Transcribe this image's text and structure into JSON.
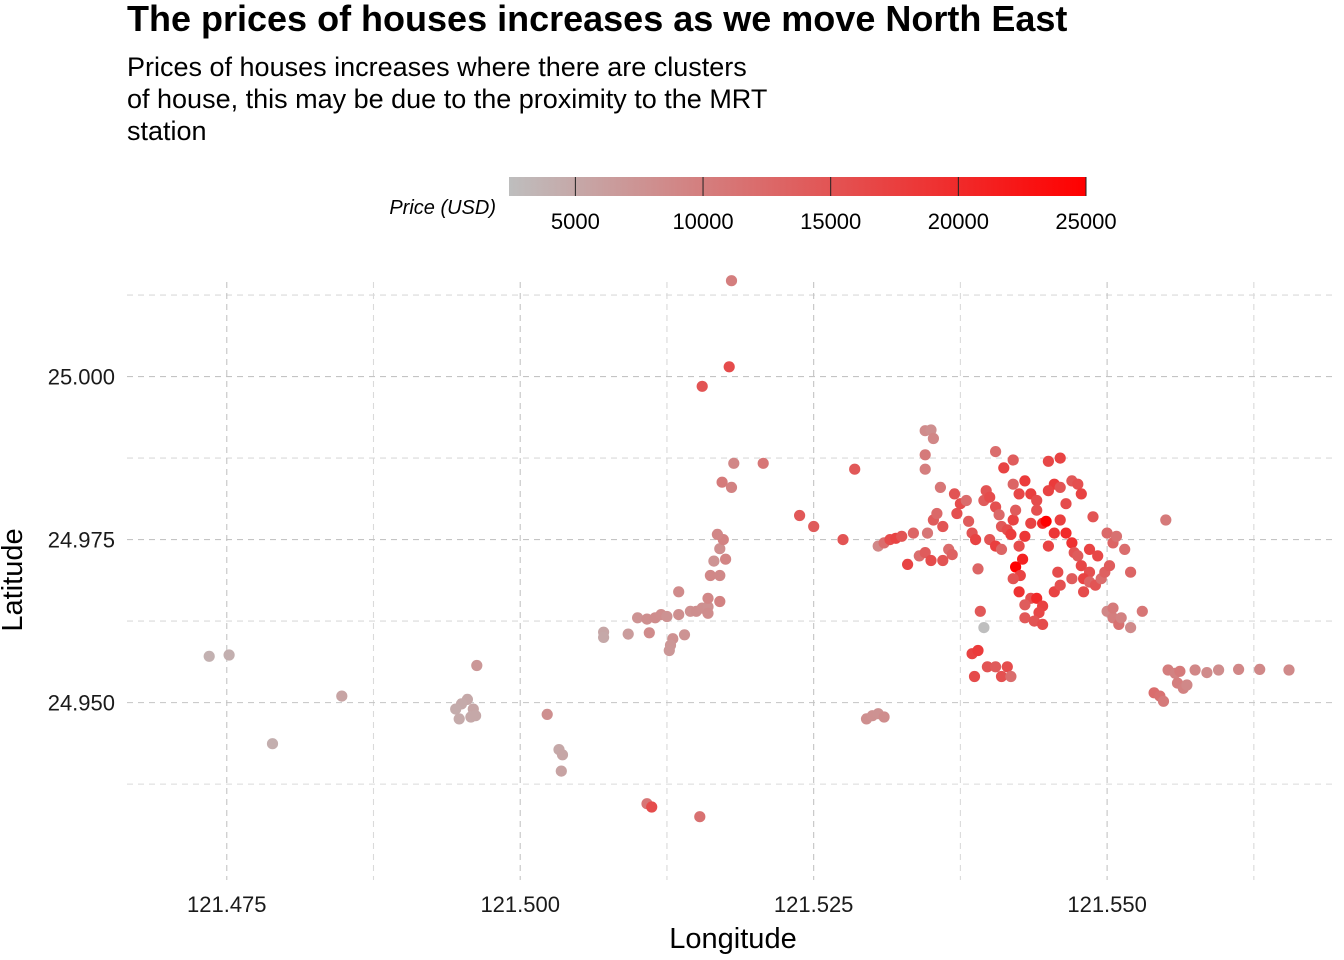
{
  "chart_data": {
    "type": "scatter",
    "title": "The prices of houses increases as we move North East",
    "subtitle_lines": [
      "Prices of houses increases where there are clusters",
      "of house, this may be due to the proximity to the MRT",
      "station"
    ],
    "xlabel": "Longitude",
    "ylabel": "Latitude",
    "xlim": [
      121.4665,
      121.5695
    ],
    "ylim": [
      24.9228,
      25.0145
    ],
    "x_ticks": [
      121.475,
      121.5,
      121.525,
      121.55
    ],
    "x_tick_labels": [
      "121.475",
      "121.500",
      "121.525",
      "121.550"
    ],
    "x_minor": [
      121.4875,
      121.5125,
      121.5375,
      121.5625
    ],
    "y_ticks": [
      24.95,
      24.975,
      25.0
    ],
    "y_tick_labels": [
      "24.950",
      "24.975",
      "25.000"
    ],
    "y_minor": [
      24.9375,
      24.9625,
      24.9875,
      25.0125
    ],
    "grid": true,
    "legend": {
      "title": "Price (USD)",
      "position": "top",
      "min": 2400,
      "max": 25000,
      "low_color": "#bebebe",
      "high_color": "#ff0000",
      "ticks": [
        5000,
        10000,
        15000,
        20000,
        25000
      ],
      "tick_labels": [
        "5000",
        "10000",
        "15000",
        "20000",
        "25000"
      ]
    },
    "points": [
      [
        121.4735,
        24.9571,
        4000
      ],
      [
        121.4752,
        24.9573,
        4200
      ],
      [
        121.4789,
        24.9437,
        4300
      ],
      [
        121.4848,
        24.951,
        5500
      ],
      [
        121.4963,
        24.9557,
        7000
      ],
      [
        121.4955,
        24.9505,
        5000
      ],
      [
        121.495,
        24.9498,
        4800
      ],
      [
        121.4945,
        24.949,
        4600
      ],
      [
        121.496,
        24.949,
        5200
      ],
      [
        121.4958,
        24.9478,
        4900
      ],
      [
        121.4948,
        24.9475,
        4700
      ],
      [
        121.4962,
        24.948,
        5000
      ],
      [
        121.5023,
        24.9482,
        8000
      ],
      [
        121.5033,
        24.9428,
        5000
      ],
      [
        121.5036,
        24.942,
        5200
      ],
      [
        121.5035,
        24.9395,
        5600
      ],
      [
        121.5071,
        24.9608,
        5200
      ],
      [
        121.5071,
        24.96,
        5000
      ],
      [
        121.5092,
        24.9605,
        6500
      ],
      [
        121.51,
        24.963,
        7500
      ],
      [
        121.5108,
        24.9628,
        8000
      ],
      [
        121.511,
        24.9607,
        8500
      ],
      [
        121.5115,
        24.963,
        8300
      ],
      [
        121.512,
        24.9635,
        8200
      ],
      [
        121.5125,
        24.9632,
        7600
      ],
      [
        121.5135,
        24.9635,
        8000
      ],
      [
        121.513,
        24.9598,
        7800
      ],
      [
        121.5128,
        24.9588,
        7200
      ],
      [
        121.5127,
        24.958,
        7000
      ],
      [
        121.5145,
        24.964,
        7800
      ],
      [
        121.514,
        24.9604,
        7500
      ],
      [
        121.5135,
        24.967,
        8500
      ],
      [
        121.515,
        24.964,
        8100
      ],
      [
        121.5155,
        24.9645,
        8000
      ],
      [
        121.516,
        24.9647,
        7700
      ],
      [
        121.516,
        24.9637,
        8200
      ],
      [
        121.5162,
        24.9695,
        9000
      ],
      [
        121.517,
        24.9695,
        8800
      ],
      [
        121.5165,
        24.9717,
        7500
      ],
      [
        121.517,
        24.9736,
        8000
      ],
      [
        121.5175,
        24.972,
        9200
      ],
      [
        121.5173,
        24.975,
        9400
      ],
      [
        121.5168,
        24.9758,
        9000
      ],
      [
        121.517,
        24.9655,
        9500
      ],
      [
        121.516,
        24.966,
        9000
      ],
      [
        121.5172,
        24.9838,
        10500
      ],
      [
        121.518,
        24.983,
        9500
      ],
      [
        121.5182,
        24.9867,
        9000
      ],
      [
        121.5155,
        24.9985,
        15000
      ],
      [
        121.5178,
        25.0015,
        16000
      ],
      [
        121.518,
        25.0147,
        10000
      ],
      [
        121.5207,
        24.9867,
        11000
      ],
      [
        121.5108,
        24.9345,
        11000
      ],
      [
        121.5112,
        24.934,
        16000
      ],
      [
        121.5153,
        24.9325,
        11500
      ],
      [
        121.5238,
        24.9787,
        14500
      ],
      [
        121.525,
        24.977,
        14000
      ],
      [
        121.5275,
        24.975,
        15000
      ],
      [
        121.5285,
        24.9858,
        14500
      ],
      [
        121.5295,
        24.9475,
        8000
      ],
      [
        121.53,
        24.948,
        7800
      ],
      [
        121.5305,
        24.9483,
        7600
      ],
      [
        121.531,
        24.9478,
        8200
      ],
      [
        121.5305,
        24.974,
        9000
      ],
      [
        121.531,
        24.9745,
        12000
      ],
      [
        121.5315,
        24.975,
        16000
      ],
      [
        121.532,
        24.9752,
        17000
      ],
      [
        121.5325,
        24.9755,
        15000
      ],
      [
        121.533,
        24.9712,
        17000
      ],
      [
        121.534,
        24.9725,
        12000
      ],
      [
        121.5335,
        24.976,
        13000
      ],
      [
        121.5345,
        24.973,
        14000
      ],
      [
        121.535,
        24.9718,
        16000
      ],
      [
        121.5347,
        24.976,
        11000
      ],
      [
        121.5352,
        24.978,
        14000
      ],
      [
        121.5355,
        24.979,
        12500
      ],
      [
        121.536,
        24.977,
        15000
      ],
      [
        121.5365,
        24.9735,
        12000
      ],
      [
        121.5368,
        24.9727,
        13500
      ],
      [
        121.536,
        24.9718,
        15000
      ],
      [
        121.5358,
        24.983,
        11000
      ],
      [
        121.5345,
        24.9858,
        10000
      ],
      [
        121.5345,
        24.9917,
        8500
      ],
      [
        121.535,
        24.9918,
        8000
      ],
      [
        121.5352,
        24.9905,
        9000
      ],
      [
        121.5345,
        24.988,
        10500
      ],
      [
        121.537,
        24.982,
        15000
      ],
      [
        121.5375,
        24.9805,
        16000
      ],
      [
        121.5372,
        24.979,
        15500
      ],
      [
        121.538,
        24.981,
        12000
      ],
      [
        121.5382,
        24.9778,
        14000
      ],
      [
        121.5385,
        24.976,
        15000
      ],
      [
        121.5388,
        24.975,
        17000
      ],
      [
        121.539,
        24.9705,
        13000
      ],
      [
        121.5392,
        24.964,
        14500
      ],
      [
        121.5395,
        24.9615,
        2400
      ],
      [
        121.5385,
        24.9575,
        17000
      ],
      [
        121.539,
        24.958,
        18000
      ],
      [
        121.5398,
        24.9555,
        15000
      ],
      [
        121.5387,
        24.954,
        16000
      ],
      [
        121.5405,
        24.9555,
        14000
      ],
      [
        121.541,
        24.954,
        15500
      ],
      [
        121.5415,
        24.9555,
        16000
      ],
      [
        121.5418,
        24.954,
        12000
      ],
      [
        121.5395,
        24.981,
        14000
      ],
      [
        121.5397,
        24.9825,
        15000
      ],
      [
        121.54,
        24.9815,
        16000
      ],
      [
        121.5405,
        24.98,
        15500
      ],
      [
        121.5408,
        24.9788,
        12500
      ],
      [
        121.541,
        24.977,
        14500
      ],
      [
        121.54,
        24.975,
        15000
      ],
      [
        121.5405,
        24.974,
        17500
      ],
      [
        121.541,
        24.9735,
        13000
      ],
      [
        121.5415,
        24.9765,
        16000
      ],
      [
        121.5418,
        24.9758,
        18000
      ],
      [
        121.542,
        24.978,
        17000
      ],
      [
        121.5422,
        24.9795,
        14000
      ],
      [
        121.5425,
        24.982,
        16500
      ],
      [
        121.542,
        24.9835,
        13000
      ],
      [
        121.5412,
        24.986,
        17000
      ],
      [
        121.5405,
        24.9885,
        12000
      ],
      [
        121.542,
        24.9872,
        14000
      ],
      [
        121.543,
        24.984,
        18000
      ],
      [
        121.5435,
        24.982,
        17500
      ],
      [
        121.544,
        24.981,
        16000
      ],
      [
        121.5445,
        24.9775,
        20000
      ],
      [
        121.5448,
        24.9778,
        25000
      ],
      [
        121.544,
        24.9795,
        15500
      ],
      [
        121.5435,
        24.9775,
        17000
      ],
      [
        121.543,
        24.9755,
        18500
      ],
      [
        121.5425,
        24.974,
        16000
      ],
      [
        121.5428,
        24.972,
        21000
      ],
      [
        121.5422,
        24.9708,
        25000
      ],
      [
        121.5426,
        24.9695,
        17000
      ],
      [
        121.542,
        24.969,
        15000
      ],
      [
        121.5425,
        24.967,
        19000
      ],
      [
        121.5435,
        24.966,
        15500
      ],
      [
        121.543,
        24.965,
        14000
      ],
      [
        121.544,
        24.966,
        20000
      ],
      [
        121.5445,
        24.9648,
        17000
      ],
      [
        121.5442,
        24.9638,
        16500
      ],
      [
        121.543,
        24.963,
        14500
      ],
      [
        121.5438,
        24.9625,
        15000
      ],
      [
        121.5445,
        24.962,
        16000
      ],
      [
        121.5455,
        24.967,
        17000
      ],
      [
        121.546,
        24.968,
        15500
      ],
      [
        121.5458,
        24.97,
        16000
      ],
      [
        121.545,
        24.974,
        17000
      ],
      [
        121.5455,
        24.976,
        18500
      ],
      [
        121.546,
        24.978,
        17500
      ],
      [
        121.5465,
        24.9805,
        16000
      ],
      [
        121.5455,
        24.9835,
        18000
      ],
      [
        121.545,
        24.9825,
        17000
      ],
      [
        121.546,
        24.983,
        15000
      ],
      [
        121.545,
        24.987,
        16500
      ],
      [
        121.546,
        24.9875,
        17000
      ],
      [
        121.547,
        24.984,
        14500
      ],
      [
        121.5475,
        24.9835,
        15500
      ],
      [
        121.5478,
        24.982,
        17000
      ],
      [
        121.5465,
        24.976,
        20000
      ],
      [
        121.547,
        24.9745,
        19000
      ],
      [
        121.5472,
        24.973,
        15000
      ],
      [
        121.5475,
        24.9725,
        14000
      ],
      [
        121.5478,
        24.971,
        16500
      ],
      [
        121.5485,
        24.97,
        15500
      ],
      [
        121.548,
        24.969,
        17000
      ],
      [
        121.547,
        24.969,
        14000
      ],
      [
        121.5485,
        24.9685,
        13000
      ],
      [
        121.549,
        24.968,
        15000
      ],
      [
        121.548,
        24.967,
        16000
      ],
      [
        121.5495,
        24.969,
        12000
      ],
      [
        121.5498,
        24.97,
        13500
      ],
      [
        121.5502,
        24.971,
        14000
      ],
      [
        121.5505,
        24.9745,
        13000
      ],
      [
        121.55,
        24.976,
        12500
      ],
      [
        121.5508,
        24.9755,
        11500
      ],
      [
        121.5515,
        24.9735,
        12000
      ],
      [
        121.552,
        24.97,
        13000
      ],
      [
        121.5488,
        24.9785,
        15000
      ],
      [
        121.5485,
        24.9735,
        17000
      ],
      [
        121.5492,
        24.9725,
        16500
      ],
      [
        121.55,
        24.964,
        9000
      ],
      [
        121.5505,
        24.963,
        10000
      ],
      [
        121.551,
        24.962,
        11500
      ],
      [
        121.5505,
        24.9645,
        10500
      ],
      [
        121.5512,
        24.963,
        9500
      ],
      [
        121.552,
        24.9615,
        8500
      ],
      [
        121.553,
        24.964,
        11000
      ],
      [
        121.554,
        24.9515,
        12000
      ],
      [
        121.5545,
        24.951,
        11500
      ],
      [
        121.5548,
        24.9502,
        10500
      ],
      [
        121.5552,
        24.955,
        10000
      ],
      [
        121.5558,
        24.9545,
        9500
      ],
      [
        121.5562,
        24.9548,
        10500
      ],
      [
        121.556,
        24.953,
        10000
      ],
      [
        121.5565,
        24.9522,
        9500
      ],
      [
        121.5568,
        24.9527,
        8800
      ],
      [
        121.5575,
        24.955,
        9000
      ],
      [
        121.5585,
        24.9546,
        8500
      ],
      [
        121.5595,
        24.955,
        8200
      ],
      [
        121.5612,
        24.9551,
        9000
      ],
      [
        121.563,
        24.9551,
        8800
      ],
      [
        121.5655,
        24.955,
        8600
      ],
      [
        121.555,
        24.978,
        10500
      ]
    ]
  }
}
